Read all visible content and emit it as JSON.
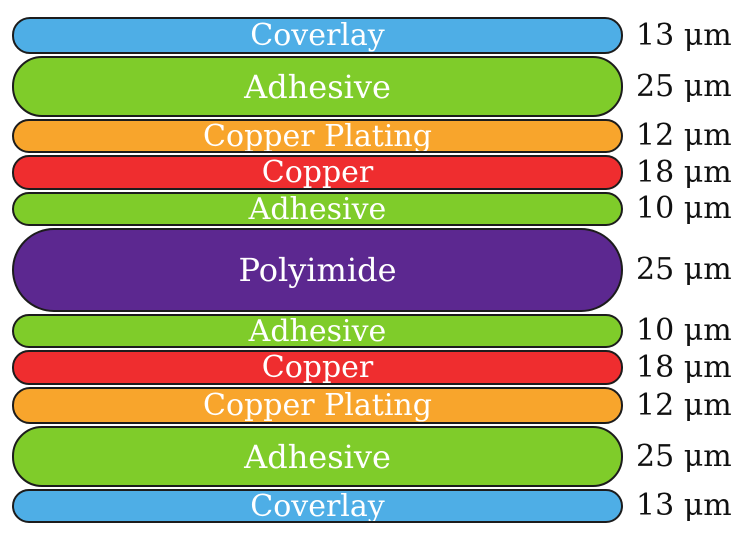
{
  "layers": [
    {
      "label": "Coverlay",
      "thickness": "13 μm",
      "color": "#4eaee6"
    },
    {
      "label": "Adhesive",
      "thickness": "25 μm",
      "color": "#7fcc2a"
    },
    {
      "label": "Copper Plating",
      "thickness": "12 μm",
      "color": "#f8a52c"
    },
    {
      "label": "Copper",
      "thickness": "18 μm",
      "color": "#ef2d2f"
    },
    {
      "label": "Adhesive",
      "thickness": "10 μm",
      "color": "#7fcc2a"
    },
    {
      "label": "Polyimide",
      "thickness": "25 μm",
      "color": "#5c2890"
    },
    {
      "label": "Adhesive",
      "thickness": "10 μm",
      "color": "#7fcc2a"
    },
    {
      "label": "Copper",
      "thickness": "18 μm",
      "color": "#ef2d2f"
    },
    {
      "label": "Copper Plating",
      "thickness": "12 μm",
      "color": "#f8a52c"
    },
    {
      "label": "Adhesive",
      "thickness": "25 μm",
      "color": "#7fcc2a"
    },
    {
      "label": "Coverlay",
      "thickness": "13 μm",
      "color": "#4eaee6"
    }
  ]
}
